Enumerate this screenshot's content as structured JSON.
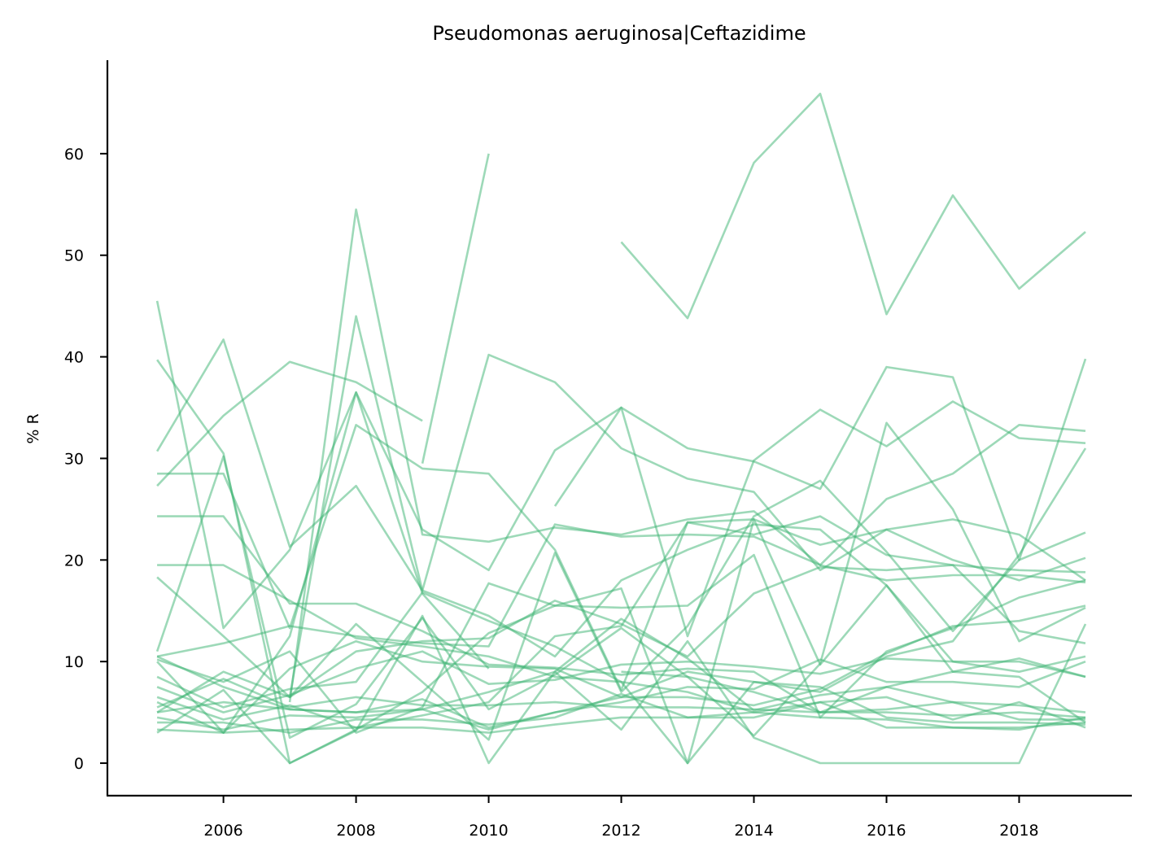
{
  "chart_data": {
    "type": "line",
    "title": "Pseudomonas aeruginosa|Ceftazidime",
    "xlabel": "",
    "ylabel": "% R",
    "x_ticks": [
      "2006",
      "2008",
      "2010",
      "2012",
      "2014",
      "2016",
      "2018"
    ],
    "y_ticks": [
      "0",
      "10",
      "20",
      "30",
      "40",
      "50",
      "60"
    ],
    "xlim": [
      2004.25,
      2019.7
    ],
    "ylim": [
      -3.2,
      69.2
    ],
    "grid": false,
    "legend": "none",
    "color": "#3cb371",
    "opacity": 0.5,
    "x": [
      2005,
      2006,
      2007,
      2008,
      2009,
      2010,
      2011,
      2012,
      2013,
      2014,
      2015,
      2016,
      2017,
      2018,
      2019
    ],
    "series": [
      {
        "values": [
          null,
          null,
          null,
          null,
          29.5,
          60.0,
          null,
          51.3,
          43.8,
          59.1,
          65.9,
          44.2,
          55.9,
          46.7,
          52.3
        ]
      },
      {
        "values": [
          45.5,
          13.3,
          21.0,
          36.5,
          23.0,
          19.0,
          30.8,
          35.0,
          31.0,
          29.7,
          27.0,
          39.0,
          38.0,
          20.0,
          39.8
        ]
      },
      {
        "values": [
          39.7,
          30.5,
          0.0,
          3.3,
          7.0,
          12.8,
          15.5,
          17.2,
          0.0,
          24.0,
          9.7,
          17.5,
          9.0,
          8.5,
          4.0
        ]
      },
      {
        "values": [
          30.7,
          41.7,
          21.3,
          27.3,
          17.0,
          40.2,
          37.5,
          31.0,
          28.0,
          26.7,
          19.0,
          23.0,
          20.0,
          18.0,
          20.2
        ]
      },
      {
        "values": [
          27.3,
          34.2,
          39.5,
          37.5,
          33.7,
          null,
          25.3,
          35.0,
          12.5,
          29.8,
          34.8,
          31.2,
          35.6,
          32.0,
          31.5
        ]
      },
      {
        "values": [
          28.5,
          28.5,
          13.3,
          33.3,
          29.0,
          28.5,
          21.0,
          7.2,
          23.7,
          24.0,
          21.5,
          23.0,
          24.0,
          22.5,
          18.0
        ]
      },
      {
        "values": [
          24.3,
          24.3,
          15.7,
          15.7,
          13.0,
          9.7,
          9.4,
          8.7,
          9.3,
          9.0,
          5.0,
          5.3,
          6.0,
          4.3,
          4.3
        ]
      },
      {
        "values": [
          19.5,
          19.5,
          16.0,
          12.3,
          11.5,
          10.5,
          8.5,
          8.0,
          0.0,
          8.0,
          7.0,
          10.5,
          12.0,
          20.5,
          31.0
        ]
      },
      {
        "values": [
          18.3,
          12.5,
          6.5,
          13.7,
          8.0,
          2.3,
          20.7,
          7.0,
          13.5,
          24.3,
          27.8,
          20.8,
          13.0,
          20.0,
          22.7
        ]
      },
      {
        "values": [
          11.0,
          30.2,
          2.5,
          5.8,
          14.3,
          5.3,
          8.7,
          13.3,
          8.5,
          2.7,
          9.8,
          33.5,
          25.0,
          12.0,
          15.3
        ]
      },
      {
        "values": [
          10.5,
          11.8,
          13.5,
          12.5,
          11.8,
          11.5,
          23.5,
          22.3,
          22.5,
          22.3,
          19.5,
          18.0,
          18.5,
          18.5,
          17.8
        ]
      },
      {
        "values": [
          10.2,
          8.0,
          11.0,
          3.0,
          5.5,
          17.7,
          15.5,
          15.3,
          15.5,
          20.5,
          4.5,
          11.0,
          13.3,
          16.3,
          18.0
        ]
      },
      {
        "values": [
          10.0,
          3.0,
          9.3,
          12.0,
          10.0,
          9.5,
          9.3,
          6.5,
          9.0,
          8.0,
          7.5,
          4.5,
          4.0,
          4.0,
          3.8
        ]
      },
      {
        "values": [
          8.5,
          5.5,
          7.3,
          8.0,
          16.8,
          14.0,
          11.5,
          8.0,
          7.0,
          5.0,
          4.5,
          4.3,
          3.5,
          3.3,
          4.5
        ]
      },
      {
        "values": [
          7.5,
          5.0,
          6.7,
          9.3,
          11.0,
          7.8,
          8.2,
          9.7,
          10.0,
          9.5,
          8.8,
          10.3,
          10.0,
          10.0,
          8.5
        ]
      },
      {
        "values": [
          6.5,
          4.3,
          5.7,
          3.5,
          4.7,
          6.0,
          12.5,
          13.5,
          23.7,
          22.5,
          24.3,
          20.5,
          19.5,
          19.0,
          18.8
        ]
      },
      {
        "values": [
          5.5,
          8.3,
          5.5,
          6.5,
          5.7,
          5.7,
          6.0,
          5.5,
          5.5,
          5.3,
          5.0,
          5.0,
          4.7,
          5.0,
          4.5
        ]
      },
      {
        "values": [
          5.0,
          6.0,
          5.3,
          5.0,
          5.3,
          7.0,
          9.0,
          14.2,
          10.3,
          5.2,
          6.7,
          7.5,
          6.0,
          5.7,
          5.0
        ]
      },
      {
        "values": [
          4.5,
          3.3,
          4.7,
          4.5,
          5.3,
          3.3,
          5.0,
          6.5,
          6.5,
          5.7,
          7.3,
          10.8,
          13.5,
          14.0,
          15.5
        ]
      },
      {
        "values": [
          4.0,
          4.0,
          3.0,
          4.3,
          4.3,
          3.8,
          4.5,
          6.8,
          4.5,
          4.5,
          6.0,
          6.5,
          4.3,
          6.0,
          3.5
        ]
      },
      {
        "values": [
          3.3,
          3.0,
          3.3,
          3.5,
          3.5,
          3.0,
          3.8,
          4.5,
          4.5,
          5.0,
          6.0,
          3.5,
          3.5,
          3.5,
          4.0
        ]
      },
      {
        "values": [
          3.0,
          7.2,
          0.0,
          3.2,
          14.5,
          0.0,
          9.0,
          3.3,
          12.0,
          2.5,
          0.0,
          0.0,
          0.0,
          0.0,
          13.7
        ]
      },
      {
        "values": [
          6.0,
          3.0,
          12.5,
          36.5,
          16.7,
          9.3,
          null,
          9.0,
          8.5,
          7.0,
          5.0,
          7.5,
          9.0,
          10.3,
          8.5
        ]
      },
      {
        "values": [
          5.0,
          9.0,
          6.5,
          11.0,
          12.0,
          12.3,
          16.0,
          13.7,
          10.5,
          16.7,
          19.3,
          19.0,
          19.5,
          13.0,
          11.8
        ]
      },
      {
        "values": [
          null,
          null,
          6.5,
          44.0,
          17.0,
          14.5,
          10.5,
          18.0,
          21.0,
          23.5,
          23.0,
          17.5,
          10.0,
          9.0,
          10.5
        ]
      },
      {
        "values": [
          null,
          null,
          6.0,
          54.5,
          22.5,
          21.8,
          23.2,
          22.5,
          24.0,
          24.8,
          19.5,
          26.0,
          28.5,
          33.3,
          32.7
        ]
      },
      {
        "values": [
          10.5,
          7.5,
          5.3,
          5.0,
          6.3,
          3.5,
          5.0,
          6.0,
          7.5,
          7.3,
          10.2,
          8.0,
          8.0,
          7.5,
          10.0
        ]
      }
    ]
  }
}
